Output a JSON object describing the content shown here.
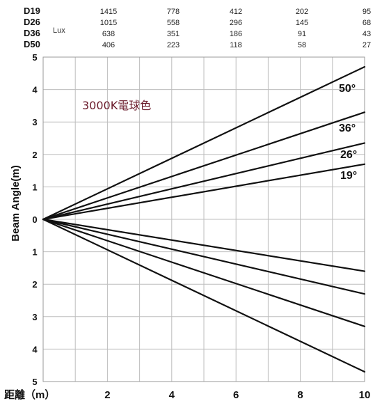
{
  "lux_table": {
    "unit": "Lux",
    "rows": [
      {
        "label": "D19",
        "values": [
          "1415",
          "778",
          "412",
          "202",
          "95"
        ]
      },
      {
        "label": "D26",
        "values": [
          "1015",
          "558",
          "296",
          "145",
          "68"
        ]
      },
      {
        "label": "D36",
        "values": [
          "638",
          "351",
          "186",
          "91",
          "43"
        ]
      },
      {
        "label": "D50",
        "values": [
          "406",
          "223",
          "118",
          "58",
          "27"
        ]
      }
    ]
  },
  "annotation": "3000K電球色",
  "chart_data": {
    "type": "line",
    "xlabel": "距離（m）",
    "ylabel": "Beam Angle(m)",
    "xlim": [
      0,
      10
    ],
    "ylim": [
      -5,
      5
    ],
    "x_ticks": [
      "2",
      "4",
      "6",
      "8",
      "10"
    ],
    "y_ticks": [
      "5",
      "4",
      "3",
      "2",
      "1",
      "0",
      "1",
      "2",
      "3",
      "4",
      "5"
    ],
    "grid": true,
    "series": [
      {
        "name": "50°",
        "x": [
          0,
          10
        ],
        "upper": [
          0,
          4.7
        ],
        "lower": [
          0,
          -4.7
        ]
      },
      {
        "name": "36°",
        "x": [
          0,
          10
        ],
        "upper": [
          0,
          3.3
        ],
        "lower": [
          0,
          -3.3
        ]
      },
      {
        "name": "26°",
        "x": [
          0,
          10
        ],
        "upper": [
          0,
          2.35
        ],
        "lower": [
          0,
          -2.3
        ]
      },
      {
        "name": "19°",
        "x": [
          0,
          10
        ],
        "upper": [
          0,
          1.7
        ],
        "lower": [
          0,
          -1.6
        ]
      }
    ]
  }
}
